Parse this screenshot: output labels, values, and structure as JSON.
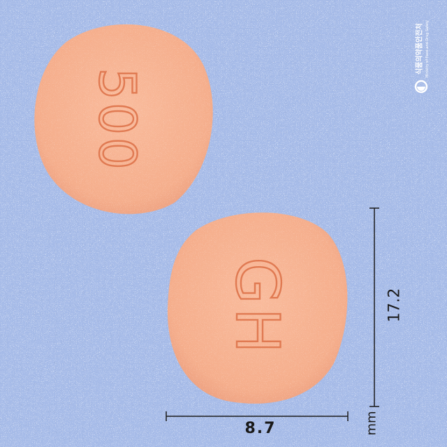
{
  "colors": {
    "background": "#a6bbe8",
    "tablet": "#f7b291",
    "tablet_shade": "#e8987a",
    "imprint": "#e07a52",
    "ruler": "#1a1a1a",
    "watermark": "#ffffff"
  },
  "tablet_front": {
    "imprint": "500"
  },
  "tablet_back": {
    "imprint": "GH"
  },
  "measurements": {
    "width": "8.7",
    "length": "17.2",
    "unit": "mm"
  },
  "watermark": {
    "name": "식품의약품안전처",
    "subtitle": "Ministry of Food and Drug Safety"
  }
}
